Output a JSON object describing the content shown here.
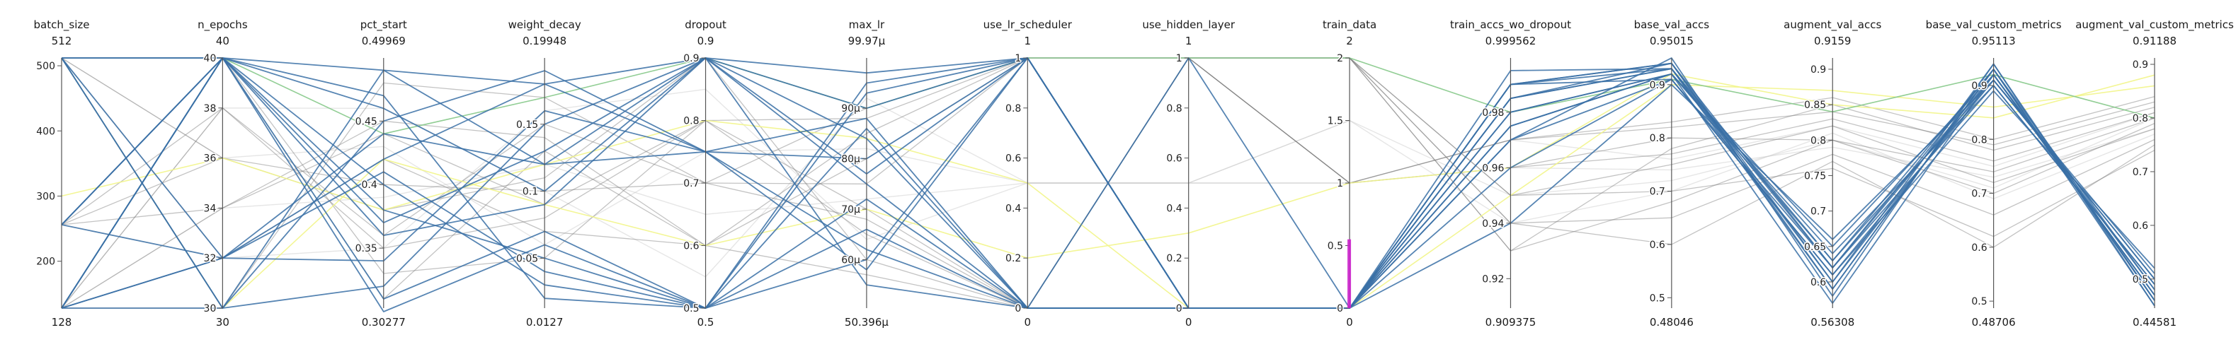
{
  "chart_data": {
    "type": "parallel-coordinates",
    "colors": {
      "highlight": "#3a70a6",
      "muted": "#7a7a7a",
      "faint": "#c8c8c8",
      "yellow": "#f2f58a",
      "green": "#86c98a",
      "magenta": "#cc22cc",
      "axis": "#555555"
    },
    "axes": [
      {
        "name": "batch_size",
        "top": "512",
        "bottom": "128",
        "min": 128,
        "max": 512,
        "ticks": [
          {
            "v": 500,
            "label": "500"
          },
          {
            "v": 400,
            "label": "400"
          },
          {
            "v": 300,
            "label": "300"
          },
          {
            "v": 200,
            "label": "200"
          }
        ]
      },
      {
        "name": "n_epochs",
        "top": "40",
        "bottom": "30",
        "min": 30,
        "max": 40,
        "ticks": [
          {
            "v": 40,
            "label": "40"
          },
          {
            "v": 38,
            "label": "38"
          },
          {
            "v": 36,
            "label": "36"
          },
          {
            "v": 34,
            "label": "34"
          },
          {
            "v": 32,
            "label": "32"
          },
          {
            "v": 30,
            "label": "30"
          }
        ]
      },
      {
        "name": "pct_start",
        "top": "0.49969",
        "bottom": "0.30277",
        "min": 0.30277,
        "max": 0.49969,
        "ticks": [
          {
            "v": 0.45,
            "label": "0.45"
          },
          {
            "v": 0.4,
            "label": "0.4"
          },
          {
            "v": 0.35,
            "label": "0.35"
          }
        ]
      },
      {
        "name": "weight_decay",
        "top": "0.19948",
        "bottom": "0.0127",
        "min": 0.0127,
        "max": 0.19948,
        "ticks": [
          {
            "v": 0.15,
            "label": "0.15"
          },
          {
            "v": 0.1,
            "label": "0.1"
          },
          {
            "v": 0.05,
            "label": "0.05"
          }
        ]
      },
      {
        "name": "dropout",
        "top": "0.9",
        "bottom": "0.5",
        "min": 0.5,
        "max": 0.9,
        "ticks": [
          {
            "v": 0.9,
            "label": "0.9"
          },
          {
            "v": 0.8,
            "label": "0.8"
          },
          {
            "v": 0.7,
            "label": "0.7"
          },
          {
            "v": 0.6,
            "label": "0.6"
          },
          {
            "v": 0.5,
            "label": "0.5"
          }
        ]
      },
      {
        "name": "max_lr",
        "top": "99.97μ",
        "bottom": "50.396μ",
        "min": 50.396,
        "max": 99.97,
        "ticks": [
          {
            "v": 90,
            "label": "90μ"
          },
          {
            "v": 80,
            "label": "80μ"
          },
          {
            "v": 70,
            "label": "70μ"
          },
          {
            "v": 60,
            "label": "60μ"
          }
        ]
      },
      {
        "name": "use_lr_scheduler",
        "top": "1",
        "bottom": "0",
        "min": 0,
        "max": 1,
        "ticks": [
          {
            "v": 1,
            "label": "1"
          },
          {
            "v": 0.8,
            "label": "0.8"
          },
          {
            "v": 0.6,
            "label": "0.6"
          },
          {
            "v": 0.4,
            "label": "0.4"
          },
          {
            "v": 0.2,
            "label": "0.2"
          },
          {
            "v": 0,
            "label": "0"
          }
        ]
      },
      {
        "name": "use_hidden_layer",
        "top": "1",
        "bottom": "0",
        "min": 0,
        "max": 1,
        "ticks": [
          {
            "v": 1,
            "label": "1"
          },
          {
            "v": 0.8,
            "label": "0.8"
          },
          {
            "v": 0.6,
            "label": "0.6"
          },
          {
            "v": 0.4,
            "label": "0.4"
          },
          {
            "v": 0.2,
            "label": "0.2"
          },
          {
            "v": 0,
            "label": "0"
          }
        ]
      },
      {
        "name": "train_data",
        "top": "2",
        "bottom": "0",
        "min": 0,
        "max": 2,
        "ticks": [
          {
            "v": 2,
            "label": "2"
          },
          {
            "v": 1.5,
            "label": "1.5"
          },
          {
            "v": 1,
            "label": "1"
          },
          {
            "v": 0.5,
            "label": "0.5"
          },
          {
            "v": 0,
            "label": "0"
          }
        ]
      },
      {
        "name": "train_accs_wo_dropout",
        "top": "0.999562",
        "bottom": "0.909375",
        "min": 0.909375,
        "max": 0.999562,
        "ticks": [
          {
            "v": 0.98,
            "label": "0.98"
          },
          {
            "v": 0.96,
            "label": "0.96"
          },
          {
            "v": 0.94,
            "label": "0.94"
          },
          {
            "v": 0.92,
            "label": "0.92"
          }
        ]
      },
      {
        "name": "base_val_accs",
        "top": "0.95015",
        "bottom": "0.48046",
        "min": 0.48046,
        "max": 0.95015,
        "ticks": [
          {
            "v": 0.9,
            "label": "0.9"
          },
          {
            "v": 0.8,
            "label": "0.8"
          },
          {
            "v": 0.7,
            "label": "0.7"
          },
          {
            "v": 0.6,
            "label": "0.6"
          },
          {
            "v": 0.5,
            "label": "0.5"
          }
        ]
      },
      {
        "name": "augment_val_accs",
        "top": "0.9159",
        "bottom": "0.56308",
        "min": 0.56308,
        "max": 0.9159,
        "ticks": [
          {
            "v": 0.9,
            "label": "0.9"
          },
          {
            "v": 0.85,
            "label": "0.85"
          },
          {
            "v": 0.8,
            "label": "0.8"
          },
          {
            "v": 0.75,
            "label": "0.75"
          },
          {
            "v": 0.7,
            "label": "0.7"
          },
          {
            "v": 0.65,
            "label": "0.65"
          },
          {
            "v": 0.6,
            "label": "0.6"
          }
        ]
      },
      {
        "name": "base_val_custom_metrics",
        "top": "0.95113",
        "bottom": "0.48706",
        "min": 0.48706,
        "max": 0.95113,
        "ticks": [
          {
            "v": 0.9,
            "label": "0.9"
          },
          {
            "v": 0.8,
            "label": "0.8"
          },
          {
            "v": 0.7,
            "label": "0.7"
          },
          {
            "v": 0.6,
            "label": "0.6"
          },
          {
            "v": 0.5,
            "label": "0.5"
          }
        ]
      },
      {
        "name": "augment_val_custom_metrics",
        "top": "0.91188",
        "bottom": "0.44581",
        "min": 0.44581,
        "max": 0.91188,
        "ticks": [
          {
            "v": 0.9,
            "label": "0.9"
          },
          {
            "v": 0.8,
            "label": "0.8"
          },
          {
            "v": 0.7,
            "label": "0.7"
          },
          {
            "v": 0.6,
            "label": "0.6"
          },
          {
            "v": 0.5,
            "label": "0.5"
          }
        ]
      }
    ],
    "series": [
      {
        "group": "highlight",
        "values": [
          512,
          40,
          0.49,
          0.18,
          0.9,
          97,
          1,
          0,
          0,
          0.99,
          0.94,
          0.62,
          0.93,
          0.46
        ]
      },
      {
        "group": "highlight",
        "values": [
          128,
          32,
          0.44,
          0.12,
          0.75,
          88,
          0,
          0,
          0,
          0.985,
          0.93,
          0.6,
          0.92,
          0.47
        ]
      },
      {
        "group": "highlight",
        "values": [
          256,
          40,
          0.38,
          0.05,
          0.5,
          60,
          1,
          0,
          0,
          0.98,
          0.92,
          0.63,
          0.91,
          0.5
        ]
      },
      {
        "group": "highlight",
        "values": [
          512,
          30,
          0.32,
          0.15,
          0.9,
          75,
          0,
          0,
          0,
          0.97,
          0.95,
          0.58,
          0.94,
          0.45
        ]
      },
      {
        "group": "highlight",
        "values": [
          128,
          40,
          0.47,
          0.02,
          0.5,
          95,
          1,
          0,
          0,
          0.99,
          0.91,
          0.61,
          0.89,
          0.52
        ]
      },
      {
        "group": "highlight",
        "values": [
          128,
          40,
          0.36,
          0.09,
          0.9,
          55,
          0,
          0,
          0,
          0.975,
          0.92,
          0.65,
          0.92,
          0.48
        ]
      },
      {
        "group": "highlight",
        "values": [
          512,
          32,
          0.42,
          0.18,
          0.75,
          80,
          1,
          0,
          0,
          0.995,
          0.93,
          0.59,
          0.93,
          0.46
        ]
      },
      {
        "group": "highlight",
        "values": [
          256,
          40,
          0.31,
          0.07,
          0.5,
          66,
          0,
          0,
          0,
          0.96,
          0.91,
          0.62,
          0.9,
          0.49
        ]
      },
      {
        "group": "highlight",
        "values": [
          128,
          30,
          0.49,
          0.12,
          0.9,
          90,
          1,
          0,
          0,
          0.985,
          0.94,
          0.6,
          0.94,
          0.46
        ]
      },
      {
        "group": "highlight",
        "values": [
          512,
          40,
          0.4,
          0.03,
          0.5,
          72,
          0,
          1,
          0,
          0.94,
          0.9,
          0.66,
          0.91,
          0.5
        ]
      },
      {
        "group": "highlight",
        "values": [
          128,
          32,
          0.34,
          0.16,
          0.75,
          58,
          1,
          0,
          0,
          0.98,
          0.92,
          0.57,
          0.92,
          0.47
        ]
      },
      {
        "group": "highlight",
        "values": [
          256,
          40,
          0.46,
          0.1,
          0.9,
          84,
          0,
          0,
          0,
          0.99,
          0.93,
          0.63,
          0.93,
          0.48
        ]
      },
      {
        "group": "highlight",
        "values": [
          128,
          40,
          0.3,
          0.06,
          0.5,
          93,
          1,
          0,
          0,
          0.97,
          0.91,
          0.61,
          0.91,
          0.51
        ]
      },
      {
        "group": "highlight",
        "values": [
          512,
          30,
          0.45,
          0.19,
          0.75,
          62,
          0,
          0,
          0,
          0.99,
          0.94,
          0.59,
          0.93,
          0.45
        ]
      },
      {
        "group": "highlight",
        "values": [
          128,
          40,
          0.37,
          0.13,
          0.9,
          77,
          1,
          0,
          0,
          0.985,
          0.93,
          0.62,
          0.92,
          0.47
        ]
      },
      {
        "group": "highlight",
        "values": [
          256,
          32,
          0.41,
          0.04,
          0.5,
          86,
          0,
          0,
          0,
          0.975,
          0.92,
          0.64,
          0.9,
          0.49
        ]
      },
      {
        "group": "muted",
        "values": [
          512,
          36,
          0.4,
          0.1,
          0.7,
          75,
          1,
          1,
          2,
          0.93,
          0.78,
          0.85,
          0.78,
          0.82
        ]
      },
      {
        "group": "muted",
        "values": [
          256,
          38,
          0.35,
          0.08,
          0.8,
          65,
          0,
          1,
          2,
          0.95,
          0.75,
          0.82,
          0.72,
          0.78
        ]
      },
      {
        "group": "muted",
        "values": [
          128,
          34,
          0.45,
          0.14,
          0.6,
          85,
          1,
          1,
          1,
          0.96,
          0.8,
          0.8,
          0.74,
          0.8
        ]
      },
      {
        "group": "muted",
        "values": [
          512,
          40,
          0.33,
          0.05,
          0.8,
          70,
          0,
          1,
          2,
          0.94,
          0.65,
          0.78,
          0.66,
          0.76
        ]
      },
      {
        "group": "muted",
        "values": [
          128,
          30,
          0.48,
          0.17,
          0.7,
          90,
          1,
          1,
          1,
          0.97,
          0.83,
          0.86,
          0.8,
          0.84
        ]
      },
      {
        "group": "muted",
        "values": [
          256,
          36,
          0.38,
          0.11,
          0.9,
          60,
          0,
          1,
          2,
          0.95,
          0.7,
          0.76,
          0.62,
          0.74
        ]
      },
      {
        "group": "muted",
        "values": [
          512,
          32,
          0.42,
          0.07,
          0.6,
          80,
          1,
          1,
          1,
          0.96,
          0.77,
          0.83,
          0.76,
          0.81
        ]
      },
      {
        "group": "muted",
        "values": [
          128,
          38,
          0.36,
          0.15,
          0.7,
          68,
          0,
          1,
          2,
          0.93,
          0.68,
          0.8,
          0.7,
          0.79
        ]
      },
      {
        "group": "muted",
        "values": [
          256,
          34,
          0.44,
          0.09,
          0.8,
          88,
          1,
          1,
          1,
          0.97,
          0.82,
          0.84,
          0.79,
          0.83
        ]
      },
      {
        "group": "muted",
        "values": [
          512,
          40,
          0.31,
          0.13,
          0.6,
          57,
          0,
          1,
          2,
          0.94,
          0.6,
          0.77,
          0.6,
          0.75
        ]
      },
      {
        "group": "faint",
        "values": [
          128,
          34,
          0.39,
          0.12,
          0.65,
          72,
          0.5,
          0.5,
          1.5,
          0.95,
          0.72,
          0.8,
          0.71,
          0.8
        ]
      },
      {
        "group": "faint",
        "values": [
          512,
          36,
          0.43,
          0.06,
          0.75,
          82,
          0.5,
          0.5,
          1,
          0.96,
          0.74,
          0.79,
          0.73,
          0.78
        ]
      },
      {
        "group": "faint",
        "values": [
          256,
          32,
          0.35,
          0.16,
          0.85,
          64,
          0.5,
          0.5,
          1.5,
          0.94,
          0.7,
          0.81,
          0.69,
          0.77
        ]
      },
      {
        "group": "faint",
        "values": [
          128,
          38,
          0.46,
          0.1,
          0.55,
          92,
          0.5,
          0.5,
          1,
          0.97,
          0.76,
          0.82,
          0.75,
          0.81
        ]
      },
      {
        "group": "yellow",
        "values": [
          512,
          30,
          0.42,
          0.09,
          0.6,
          70,
          0.2,
          0.3,
          1,
          0.96,
          0.92,
          0.85,
          0.84,
          0.88
        ]
      },
      {
        "group": "yellow",
        "values": [
          300,
          36,
          0.38,
          0.12,
          0.8,
          84,
          0.5,
          0,
          0,
          0.95,
          0.9,
          0.87,
          0.86,
          0.86
        ]
      },
      {
        "group": "green",
        "values": [
          128,
          40,
          0.44,
          0.17,
          0.9,
          90,
          1,
          1,
          2,
          0.98,
          0.91,
          0.84,
          0.92,
          0.8
        ]
      }
    ],
    "highlight_mark": {
      "axis": "train_data",
      "from": 0,
      "to": 0.55
    }
  }
}
